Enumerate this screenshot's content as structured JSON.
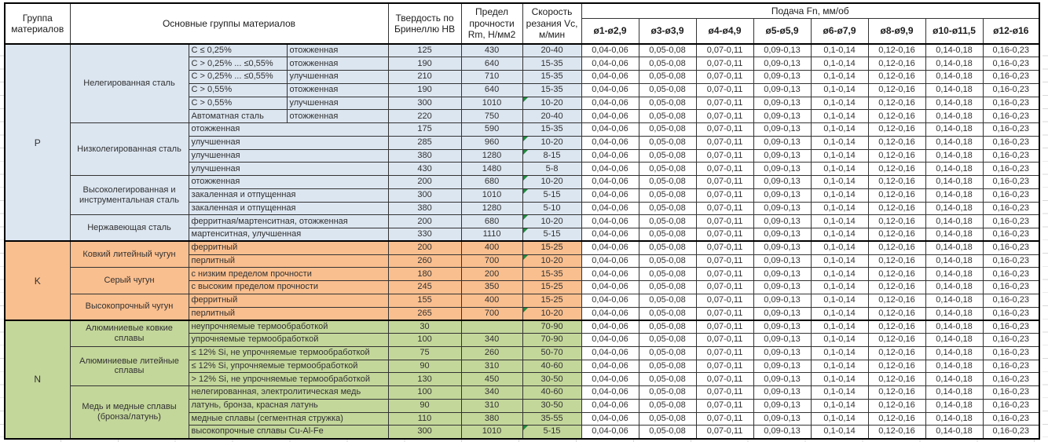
{
  "header": {
    "group_col": "Группа материалов",
    "material_col": "Основные группы материалов",
    "hardness_col": "Твердость по Бринеллю HB",
    "strength_col": "Предел прочности Rm, Н/мм2",
    "speed_col": "Скорость резания Vc, м/мин",
    "feed_title": "Подача Fn, мм/об",
    "feed_cols": [
      "ø1-ø2,9",
      "ø3-ø3,9",
      "ø4-ø4,9",
      "ø5-ø5,9",
      "ø6-ø7,9",
      "ø8-ø9,9",
      "ø10-ø11,5",
      "ø12-ø16"
    ]
  },
  "feed_values": [
    "0,04-0,06",
    "0,05-0,08",
    "0,07-0,11",
    "0,09-0,13",
    "0,1-0,14",
    "0,12-0,16",
    "0,14-0,18",
    "0,16-0,23"
  ],
  "colors": {
    "section_p": "#dce6f1",
    "section_k": "#fabf8f",
    "section_n": "#c4d79b",
    "marker": "#1e8a3d"
  },
  "sections": [
    {
      "code": "P",
      "color": "#dce6f1",
      "groups": [
        {
          "name": "Нелегированная сталь",
          "rows": [
            {
              "sub": "C ≤ 0,25%",
              "state": "отожженная",
              "hb": "125",
              "rm": "430",
              "vc": "20-40",
              "marker": false
            },
            {
              "sub": "C > 0,25% ... ≤0,55%",
              "state": "отожженная",
              "hb": "190",
              "rm": "640",
              "vc": "15-35",
              "marker": false
            },
            {
              "sub": "C > 0,25% ... ≤0,55%",
              "state": "улучшенная",
              "hb": "210",
              "rm": "710",
              "vc": "15-35",
              "marker": false
            },
            {
              "sub": "C > 0,55%",
              "state": "отожженная",
              "hb": "190",
              "rm": "640",
              "vc": "15-35",
              "marker": false
            },
            {
              "sub": "C > 0,55%",
              "state": "улучшенная",
              "hb": "300",
              "rm": "1010",
              "vc": "10-20",
              "marker": true
            },
            {
              "sub": "Автоматная сталь",
              "state": "отожженная",
              "hb": "220",
              "rm": "750",
              "vc": "20-40",
              "marker": false
            }
          ]
        },
        {
          "name": "Низколегированная сталь",
          "rows": [
            {
              "sub": "отожженная",
              "state": null,
              "hb": "175",
              "rm": "590",
              "vc": "15-35",
              "marker": false
            },
            {
              "sub": "улучшенная",
              "state": null,
              "hb": "285",
              "rm": "960",
              "vc": "10-20",
              "marker": true
            },
            {
              "sub": "улучшенная",
              "state": null,
              "hb": "380",
              "rm": "1280",
              "vc": "8-15",
              "marker": true
            },
            {
              "sub": "улучшенная",
              "state": null,
              "hb": "430",
              "rm": "1480",
              "vc": "5-8",
              "marker": false
            }
          ]
        },
        {
          "name": "Высоколегированная и инструментальная сталь",
          "rows": [
            {
              "sub": "отожженная",
              "state": null,
              "hb": "200",
              "rm": "680",
              "vc": "10-20",
              "marker": true
            },
            {
              "sub": "закаленная и отпущенная",
              "state": null,
              "hb": "300",
              "rm": "1010",
              "vc": "5-15",
              "marker": true
            },
            {
              "sub": "закаленная и отпущенная",
              "state": null,
              "hb": "380",
              "rm": "1280",
              "vc": "5-10",
              "marker": false
            }
          ]
        },
        {
          "name": "Нержавеющая сталь",
          "rows": [
            {
              "sub": "ферритная/мартенситная, отожженная",
              "state": null,
              "hb": "200",
              "rm": "680",
              "vc": "10-20",
              "marker": true
            },
            {
              "sub": "мартенситная, улучшенная",
              "state": null,
              "hb": "330",
              "rm": "1110",
              "vc": "5-15",
              "marker": true
            }
          ]
        }
      ]
    },
    {
      "code": "K",
      "color": "#fabf8f",
      "groups": [
        {
          "name": "Ковкий литейный чугун",
          "rows": [
            {
              "sub": "ферритный",
              "state": null,
              "hb": "200",
              "rm": "400",
              "vc": "15-25",
              "marker": false
            },
            {
              "sub": "перлитный",
              "state": null,
              "hb": "260",
              "rm": "700",
              "vc": "10-20",
              "marker": true
            }
          ]
        },
        {
          "name": "Серый чугун",
          "rows": [
            {
              "sub": "с низким пределом прочности",
              "state": null,
              "hb": "180",
              "rm": "200",
              "vc": "15-35",
              "marker": false
            },
            {
              "sub": "с высоким пределом прочности",
              "state": null,
              "hb": "245",
              "rm": "350",
              "vc": "15-25",
              "marker": false
            }
          ]
        },
        {
          "name": "Высокопрочный чугун",
          "rows": [
            {
              "sub": "ферритный",
              "state": null,
              "hb": "155",
              "rm": "400",
              "vc": "15-25",
              "marker": false
            },
            {
              "sub": "перлитный",
              "state": null,
              "hb": "265",
              "rm": "700",
              "vc": "10-20",
              "marker": true
            }
          ]
        }
      ]
    },
    {
      "code": "N",
      "color": "#c4d79b",
      "groups": [
        {
          "name": "Алюминиевые ковкие сплавы",
          "rows": [
            {
              "sub": "неупрочняемые термообработкой",
              "state": null,
              "hb": "30",
              "rm": "",
              "vc": "70-90",
              "marker": false
            },
            {
              "sub": "упрочняемые термообработкой",
              "state": null,
              "hb": "100",
              "rm": "340",
              "vc": "70-90",
              "marker": false
            }
          ]
        },
        {
          "name": "Алюминиевые литейные сплавы",
          "rows": [
            {
              "sub": "≤ 12% Si, не упрочняемые термообработкой",
              "state": null,
              "hb": "75",
              "rm": "260",
              "vc": "50-70",
              "marker": false
            },
            {
              "sub": "≤ 12% Si, упрочняемые термообработкой",
              "state": null,
              "hb": "90",
              "rm": "310",
              "vc": "40-60",
              "marker": false
            },
            {
              "sub": "> 12% Si, не упрочняемые термообработкой",
              "state": null,
              "hb": "130",
              "rm": "450",
              "vc": "30-50",
              "marker": false
            }
          ]
        },
        {
          "name": "Медь и медные сплавы (бронза/латунь)",
          "rows": [
            {
              "sub": "нелегированная, электролитическая медь",
              "state": null,
              "hb": "100",
              "rm": "340",
              "vc": "40-60",
              "marker": false
            },
            {
              "sub": "латунь, бронза, красная латунь",
              "state": null,
              "hb": "90",
              "rm": "310",
              "vc": "30-50",
              "marker": false
            },
            {
              "sub": "медные сплавы (сегментная стружка)",
              "state": null,
              "hb": "110",
              "rm": "380",
              "vc": "35-55",
              "marker": false
            },
            {
              "sub": "высокопрочные сплавы Cu-Al-Fe",
              "state": null,
              "hb": "300",
              "rm": "1010",
              "vc": "5-15",
              "marker": true
            }
          ]
        }
      ]
    }
  ]
}
